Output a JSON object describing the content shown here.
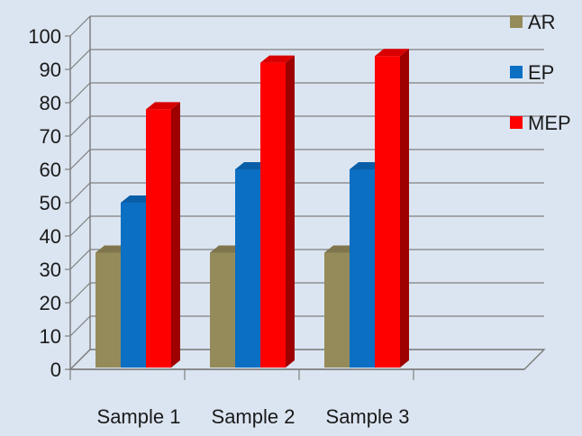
{
  "chart_data": {
    "type": "bar",
    "categories": [
      "Sample 1",
      "Sample 2",
      "Sample 3"
    ],
    "series": [
      {
        "name": "AR",
        "values": [
          35,
          35,
          35
        ],
        "color": "#958b5a"
      },
      {
        "name": "EP",
        "values": [
          50,
          60,
          60
        ],
        "color": "#0b6fc4"
      },
      {
        "name": "MEP",
        "values": [
          78,
          92,
          94
        ],
        "color": "#ff0000"
      }
    ],
    "yticks": [
      0,
      10,
      20,
      30,
      40,
      50,
      60,
      70,
      80,
      90,
      100
    ],
    "ylim": [
      0,
      100
    ],
    "grid": true,
    "legend_position": "right",
    "style": "3d"
  }
}
